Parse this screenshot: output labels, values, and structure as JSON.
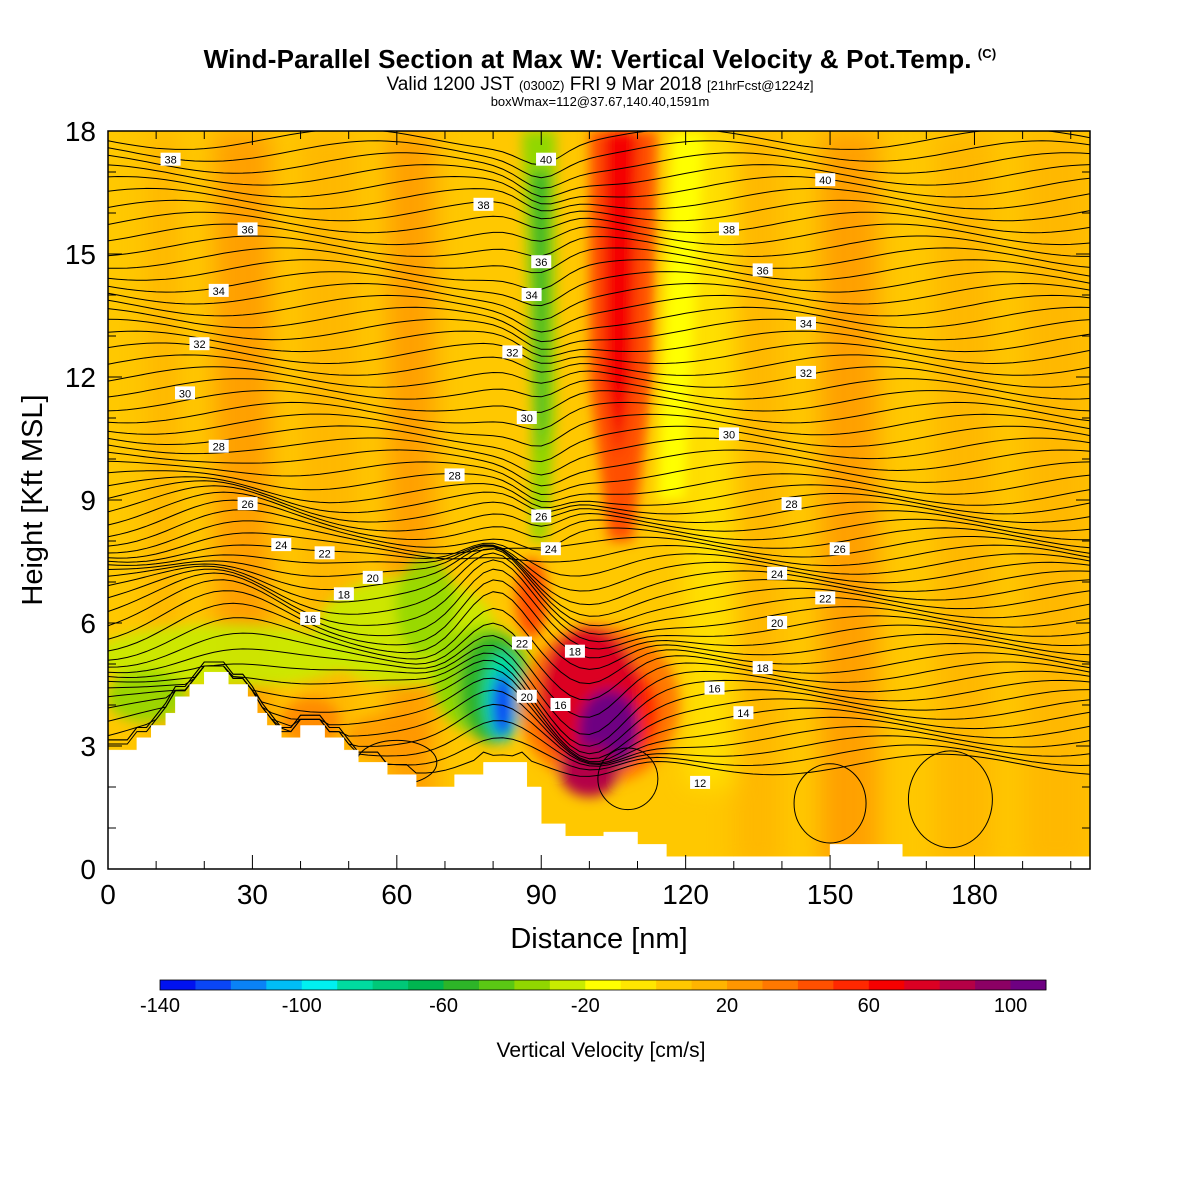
{
  "header": {
    "title": "Wind-Parallel Section at Max W: Vertical Velocity & Pot.Temp.",
    "copyright": "(C)",
    "valid_prefix": "Valid 1200 JST",
    "valid_zulu": "(0300Z)",
    "valid_date": "FRI 9 Mar 2018",
    "forecast": "[21hrFcst@1224z]",
    "box_info": "boxWmax=112@37.67,140.40,1591m"
  },
  "chart_data": {
    "type": "heatmap",
    "xlabel": "Distance [nm]",
    "ylabel": "Height [Kft MSL]",
    "xlim": [
      0,
      204
    ],
    "ylim": [
      0,
      18
    ],
    "xticks": [
      0,
      30,
      60,
      90,
      120,
      150,
      180
    ],
    "yticks": [
      0,
      3,
      6,
      9,
      12,
      15,
      18
    ],
    "colorbar": {
      "label": "Vertical Velocity [cm/s]",
      "min": -140,
      "max": 110,
      "step": 10,
      "tick_labels": [
        -140,
        -100,
        -60,
        -20,
        20,
        60,
        100
      ],
      "colors": [
        "#0012f0",
        "#0a46f5",
        "#0a82f5",
        "#00bef5",
        "#00f0f0",
        "#00dca0",
        "#00c878",
        "#00b450",
        "#2db428",
        "#5ac814",
        "#91d700",
        "#c8eb00",
        "#ffff00",
        "#ffe600",
        "#ffc800",
        "#ffb400",
        "#ff9600",
        "#ff7800",
        "#ff5000",
        "#ff2800",
        "#f50000",
        "#dc0023",
        "#b40046",
        "#8c0064",
        "#6e0082"
      ]
    },
    "terrain": [
      [
        0,
        2.9
      ],
      [
        6,
        2.9
      ],
      [
        6,
        3.2
      ],
      [
        9,
        3.2
      ],
      [
        9,
        3.5
      ],
      [
        12,
        3.5
      ],
      [
        12,
        3.8
      ],
      [
        14,
        3.8
      ],
      [
        14,
        4.2
      ],
      [
        17,
        4.2
      ],
      [
        17,
        4.5
      ],
      [
        20,
        4.5
      ],
      [
        20,
        4.8
      ],
      [
        25,
        4.8
      ],
      [
        25,
        4.5
      ],
      [
        29,
        4.5
      ],
      [
        29,
        4.2
      ],
      [
        31,
        4.2
      ],
      [
        31,
        3.8
      ],
      [
        33,
        3.8
      ],
      [
        33,
        3.5
      ],
      [
        36,
        3.5
      ],
      [
        36,
        3.2
      ],
      [
        40,
        3.2
      ],
      [
        40,
        3.5
      ],
      [
        45,
        3.5
      ],
      [
        45,
        3.2
      ],
      [
        49,
        3.2
      ],
      [
        49,
        2.9
      ],
      [
        52,
        2.9
      ],
      [
        52,
        2.6
      ],
      [
        58,
        2.6
      ],
      [
        58,
        2.3
      ],
      [
        64,
        2.3
      ],
      [
        64,
        2.0
      ],
      [
        72,
        2.0
      ],
      [
        72,
        2.3
      ],
      [
        78,
        2.3
      ],
      [
        78,
        2.6
      ],
      [
        87,
        2.6
      ],
      [
        87,
        2.0
      ],
      [
        90,
        2.0
      ],
      [
        90,
        1.1
      ],
      [
        95,
        1.1
      ],
      [
        95,
        0.8
      ],
      [
        103,
        0.8
      ],
      [
        103,
        0.9
      ],
      [
        110,
        0.9
      ],
      [
        110,
        0.6
      ],
      [
        116,
        0.6
      ],
      [
        116,
        0.3
      ],
      [
        130,
        0.3
      ],
      [
        130,
        0.3
      ],
      [
        150,
        0.3
      ],
      [
        150,
        0.6
      ],
      [
        165,
        0.6
      ],
      [
        165,
        0.3
      ],
      [
        204,
        0.3
      ]
    ],
    "vertical_velocity_features": [
      {
        "x": 82,
        "y": 4.2,
        "value": -140
      },
      {
        "x": 89,
        "y": 15.0,
        "value": -50
      },
      {
        "x": 104,
        "y": 3.3,
        "value": 110
      },
      {
        "x": 108,
        "y": 15.0,
        "value": 70
      },
      {
        "x": 120,
        "y": 12.0,
        "value": -20
      },
      {
        "x": 24,
        "y": 5.2,
        "value": -30
      },
      {
        "x": 62,
        "y": 5.8,
        "value": -40
      }
    ],
    "theta_contours": [
      {
        "level": 12,
        "label_x": 123,
        "label_y": 2.1
      },
      {
        "level": 14,
        "label_x": 132,
        "label_y": 3.8
      },
      {
        "level": 16,
        "label_x": 126,
        "label_y": 4.4,
        "label2_x": 42,
        "label2_y": 6.1,
        "label3_x": 94,
        "label3_y": 4.0
      },
      {
        "level": 18,
        "label_x": 136,
        "label_y": 4.9,
        "label2_x": 49,
        "label2_y": 6.7,
        "label3_x": 97,
        "label3_y": 5.3
      },
      {
        "level": 20,
        "label_x": 139,
        "label_y": 6.0,
        "label2_x": 55,
        "label2_y": 7.1,
        "label3_x": 87,
        "label3_y": 4.2
      },
      {
        "level": 22,
        "label_x": 149,
        "label_y": 6.6,
        "label2_x": 45,
        "label2_y": 7.7,
        "label3_x": 86,
        "label3_y": 5.5
      },
      {
        "level": 24,
        "label_x": 139,
        "label_y": 7.2,
        "label2_x": 36,
        "label2_y": 7.9,
        "label3_x": 92,
        "label3_y": 7.8
      },
      {
        "level": 26,
        "label_x": 152,
        "label_y": 7.8,
        "label2_x": 29,
        "label2_y": 8.9,
        "label3_x": 90,
        "label3_y": 8.6
      },
      {
        "level": 28,
        "label_x": 142,
        "label_y": 8.9,
        "label2_x": 23,
        "label2_y": 10.3,
        "label3_x": 72,
        "label3_y": 9.6
      },
      {
        "level": 30,
        "label_x": 129,
        "label_y": 10.6,
        "label2_x": 16,
        "label2_y": 11.6,
        "label3_x": 87,
        "label3_y": 11.0
      },
      {
        "level": 32,
        "label_x": 145,
        "label_y": 12.1,
        "label2_x": 19,
        "label2_y": 12.8,
        "label3_x": 84,
        "label3_y": 12.6
      },
      {
        "level": 34,
        "label_x": 145,
        "label_y": 13.3,
        "label2_x": 23,
        "label2_y": 14.1,
        "label3_x": 88,
        "label3_y": 14.0
      },
      {
        "level": 36,
        "label_x": 136,
        "label_y": 14.6,
        "label2_x": 29,
        "label2_y": 15.6,
        "label3_x": 90,
        "label3_y": 14.8
      },
      {
        "level": 38,
        "label_x": 129,
        "label_y": 15.6,
        "label2_x": 13,
        "label2_y": 17.3,
        "label3_x": 78,
        "label3_y": 16.2
      },
      {
        "level": 40,
        "label_x": 149,
        "label_y": 16.8,
        "label3_x": 91,
        "label3_y": 17.3
      }
    ]
  }
}
